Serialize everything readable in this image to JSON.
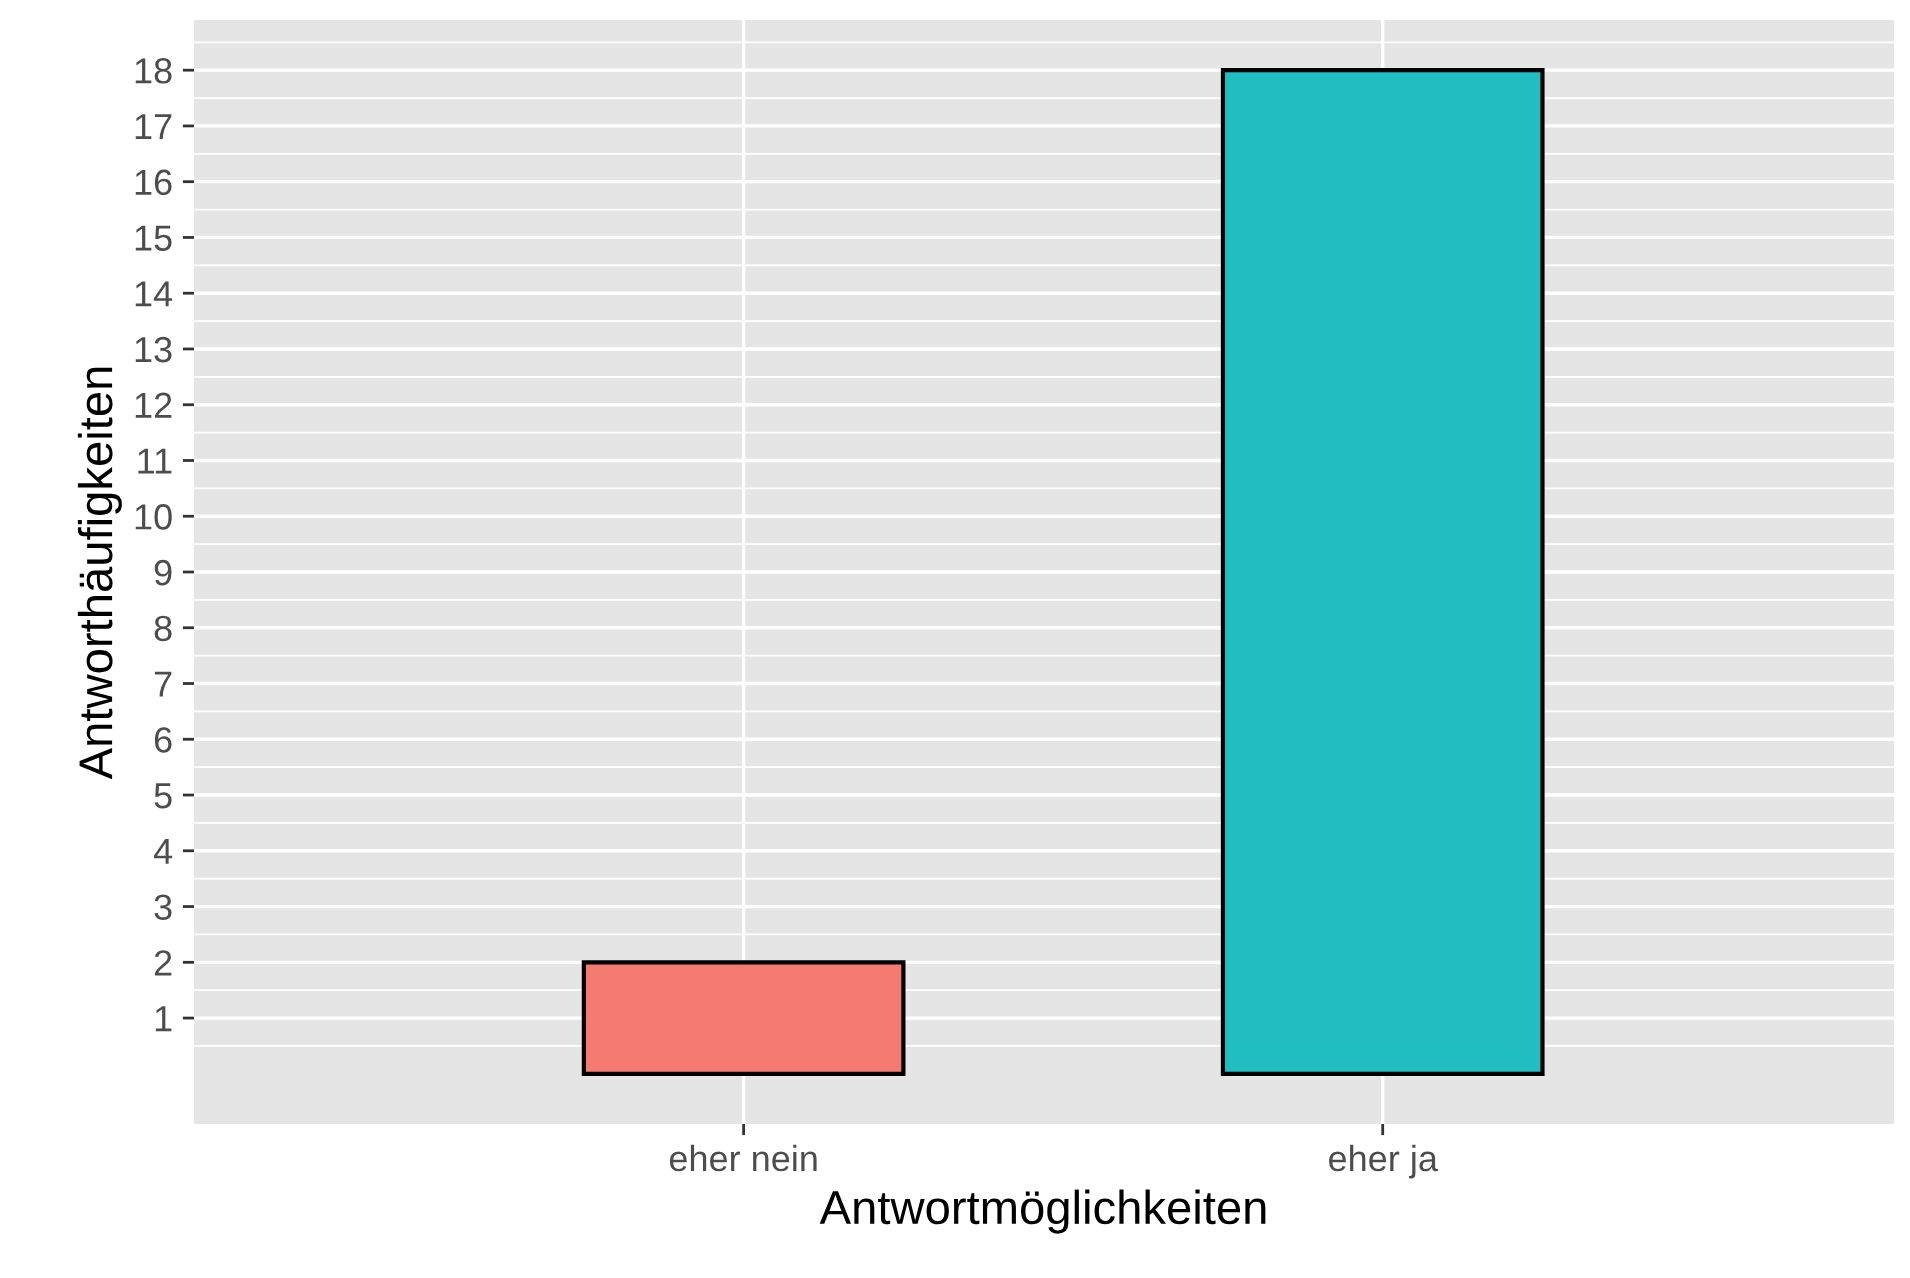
{
  "chart_data": {
    "type": "bar",
    "xlabel": "Antwortmöglichkeiten",
    "ylabel": "Antworthäufigkeiten",
    "categories": [
      "eher nein",
      "eher ja"
    ],
    "values": [
      2,
      18
    ],
    "colors": [
      "#f47a72",
      "#20bec0"
    ],
    "ylim": [
      -0.9,
      18.9
    ],
    "yticks": [
      1,
      2,
      3,
      4,
      5,
      6,
      7,
      8,
      9,
      10,
      11,
      12,
      13,
      14,
      15,
      16,
      17,
      18
    ],
    "grid": true
  }
}
